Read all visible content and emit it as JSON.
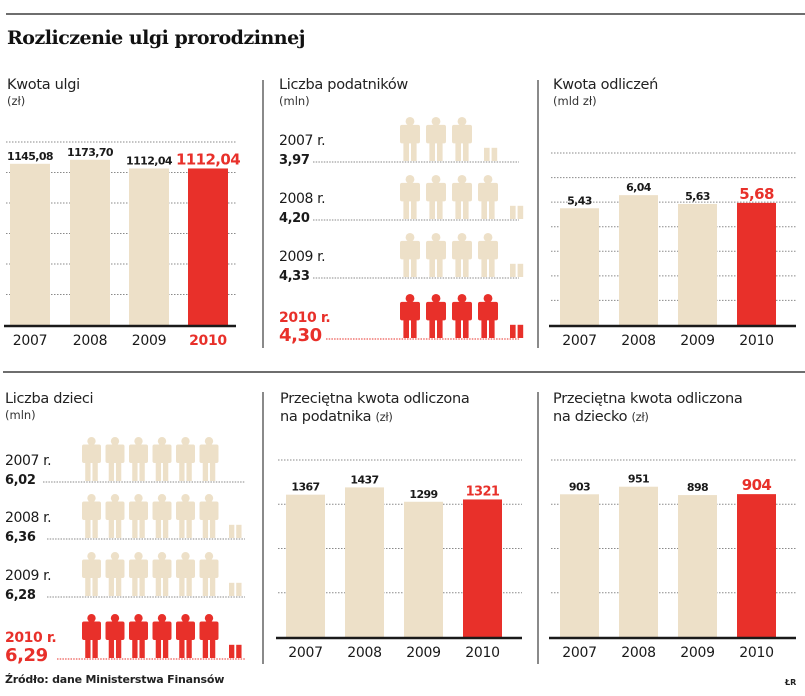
{
  "title": "Rozliczenie ulgi prorodzinnej",
  "source": "Źródło: dane Ministerstwa Finansów",
  "author": "ŁR",
  "colors": {
    "base": "#ede0c8",
    "highlight": "#e8302a",
    "text": "#1a1a1a",
    "axis": "#1a1a1a",
    "grid": "#8a8a8a"
  },
  "panels": {
    "kwota_ulgi": {
      "title": "Kwota ulgi",
      "unit": "(zł)"
    },
    "liczba_podatnikow": {
      "title": "Liczba podatników",
      "unit": "(mln)"
    },
    "kwota_odliczen": {
      "title": "Kwota odliczeń",
      "unit": "(mld zł)"
    },
    "liczba_dzieci": {
      "title": "Liczba dzieci",
      "unit": "(mln)"
    },
    "kwota_na_podatnika": {
      "title_line1": "Przeciętna kwota odliczona",
      "title_line2": "na podatnika",
      "unit": "(zł)"
    },
    "kwota_na_dziecko": {
      "title_line1": "Przeciętna kwota odliczona",
      "title_line2": "na dziecko",
      "unit": "(zł)"
    }
  },
  "chart_data": [
    {
      "id": "kwota_ulgi",
      "type": "bar",
      "title": "Kwota ulgi",
      "ylabel": "zł",
      "categories": [
        "2007",
        "2008",
        "2009",
        "2010"
      ],
      "values": [
        1145.08,
        1173.7,
        1112.04,
        1112.04
      ],
      "labels": [
        "1145,08",
        "1173,70",
        "1112,04",
        "1112,04"
      ],
      "highlight_index": 3,
      "ylim": [
        0,
        1300
      ],
      "grid": true
    },
    {
      "id": "liczba_podatnikow",
      "type": "pictogram",
      "title": "Liczba podatników",
      "ylabel": "mln",
      "categories": [
        "2007 r.",
        "2008 r.",
        "2009 r.",
        "2010 r."
      ],
      "values": [
        3.97,
        4.2,
        4.33,
        4.3
      ],
      "labels": [
        "3,97",
        "4,20",
        "4,33",
        "4,30"
      ],
      "unit_per_icon": 1,
      "highlight_index": 3
    },
    {
      "id": "kwota_odliczen",
      "type": "bar",
      "title": "Kwota odliczeń",
      "ylabel": "mld zł",
      "categories": [
        "2007",
        "2008",
        "2009",
        "2010"
      ],
      "values": [
        5.43,
        6.04,
        5.63,
        5.68
      ],
      "labels": [
        "5,43",
        "6,04",
        "5,63",
        "5,68"
      ],
      "highlight_index": 3,
      "ylim": [
        0,
        8
      ],
      "grid": true
    },
    {
      "id": "liczba_dzieci",
      "type": "pictogram",
      "title": "Liczba dzieci",
      "ylabel": "mln",
      "categories": [
        "2007 r.",
        "2008 r.",
        "2009 r.",
        "2010 r."
      ],
      "values": [
        6.02,
        6.36,
        6.28,
        6.29
      ],
      "labels": [
        "6,02",
        "6,36",
        "6,28",
        "6,29"
      ],
      "unit_per_icon": 1,
      "highlight_index": 3
    },
    {
      "id": "kwota_na_podatnika",
      "type": "bar",
      "title": "Przeciętna kwota odliczona na podatnika",
      "ylabel": "zł",
      "categories": [
        "2007",
        "2008",
        "2009",
        "2010"
      ],
      "values": [
        1367,
        1437,
        1299,
        1321
      ],
      "labels": [
        "1367",
        "1437",
        "1299",
        "1321"
      ],
      "highlight_index": 3,
      "ylim": [
        0,
        1700
      ],
      "grid": true
    },
    {
      "id": "kwota_na_dziecko",
      "type": "bar",
      "title": "Przeciętna kwota odliczona na dziecko",
      "ylabel": "zł",
      "categories": [
        "2007",
        "2008",
        "2009",
        "2010"
      ],
      "values": [
        903,
        951,
        898,
        904
      ],
      "labels": [
        "903",
        "951",
        "898",
        "904"
      ],
      "highlight_index": 3,
      "ylim": [
        0,
        1120
      ],
      "grid": true
    }
  ]
}
